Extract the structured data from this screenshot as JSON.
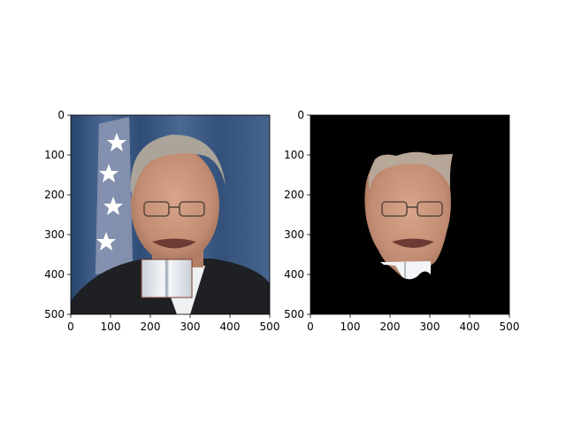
{
  "figure": {
    "panels": [
      {
        "id": "left",
        "content": "photo",
        "xlim": [
          0,
          500
        ],
        "ylim": [
          500,
          0
        ],
        "xticks": [
          "0",
          "100",
          "200",
          "300",
          "400",
          "500"
        ],
        "yticks": [
          "0",
          "100",
          "200",
          "300",
          "400",
          "500"
        ]
      },
      {
        "id": "right",
        "content": "segmented-face-on-black",
        "xlim": [
          0,
          500
        ],
        "ylim": [
          500,
          0
        ],
        "xticks": [
          "0",
          "100",
          "200",
          "300",
          "400",
          "500"
        ],
        "yticks": [
          "0",
          "100",
          "200",
          "300",
          "400",
          "500"
        ]
      }
    ],
    "colors": {
      "background_curtain": "#3d5b85",
      "suit": "#1f2023",
      "skin": "#c9967c",
      "hair": "#aaa49a",
      "mask_background": "#000000",
      "occluder_book": "#e9edf2"
    }
  }
}
